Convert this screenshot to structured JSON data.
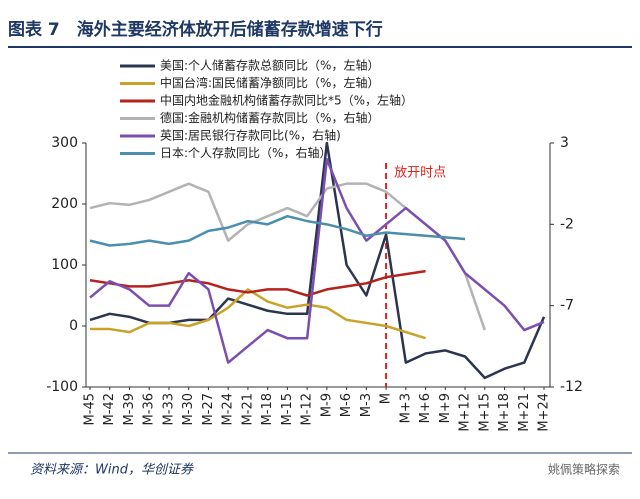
{
  "chart_data": {
    "type": "line",
    "title": "图表 7　海外主要经济体放开后储蓄存款增速下行",
    "source": "资料来源：Wind，华创证券",
    "watermark": "姚佩策略探索",
    "categories": [
      "M-45",
      "M-42",
      "M-39",
      "M-36",
      "M-33",
      "M-30",
      "M-27",
      "M-24",
      "M-21",
      "M-18",
      "M-15",
      "M-12",
      "M-9",
      "M-6",
      "M-3",
      "M",
      "M+3",
      "M+6",
      "M+9",
      "M+12",
      "M+15",
      "M+18",
      "M+21",
      "M+24"
    ],
    "ylim": [
      -100,
      300
    ],
    "yticks": [
      -100,
      0,
      100,
      200,
      300
    ],
    "y2lim": [
      -12,
      3
    ],
    "y2ticks": [
      -12,
      -7,
      -2,
      3
    ],
    "annotations": [
      {
        "text": "放开时点",
        "at": "M",
        "color": "#e0201b"
      }
    ],
    "series": [
      {
        "name": "美国:个人储蓄存款总额同比（%，左轴）",
        "color": "#2b3550",
        "axis": "y",
        "values": [
          10,
          20,
          15,
          5,
          5,
          10,
          10,
          45,
          35,
          25,
          20,
          20,
          300,
          100,
          50,
          150,
          -60,
          -45,
          -40,
          -50,
          -85,
          -70,
          -60,
          15
        ]
      },
      {
        "name": "中国台湾:国民储蓄净额同比（%，左轴）",
        "color": "#c9a227",
        "axis": "y",
        "values": [
          -5,
          -5,
          -10,
          5,
          5,
          0,
          10,
          30,
          60,
          40,
          30,
          35,
          30,
          10,
          5,
          0,
          -10,
          -20,
          null,
          null,
          null,
          null,
          null,
          null
        ]
      },
      {
        "name": "中国内地金融机构储蓄存款同比*5（%，左轴）",
        "color": "#b5221c",
        "axis": "y",
        "values": [
          75,
          70,
          65,
          65,
          70,
          75,
          70,
          60,
          55,
          60,
          60,
          50,
          60,
          65,
          70,
          80,
          85,
          90,
          null,
          null,
          null,
          null,
          null,
          null
        ]
      },
      {
        "name": "德国:金融机构储蓄存款同比（%，右轴）",
        "color": "#b3b3b3",
        "axis": "y2",
        "values": [
          -1,
          -0.7,
          -0.8,
          -0.5,
          0,
          0.5,
          0,
          -3,
          -2,
          -1.5,
          -1,
          -1.5,
          0.2,
          0.5,
          0.5,
          0,
          -1,
          -2,
          -3,
          -5,
          -8.5,
          null,
          null,
          null
        ]
      },
      {
        "name": "英国:居民银行存款同比(%，右轴)",
        "color": "#7b4fb0",
        "axis": "y2",
        "values": [
          -6.5,
          -5.5,
          -6,
          -7,
          -7,
          -5,
          -6,
          -10.5,
          -9.5,
          -8.5,
          -9,
          -9,
          2,
          -1,
          -3,
          -2,
          -1,
          -2,
          -3,
          -5,
          -6,
          -7,
          -8.5,
          -8
        ]
      },
      {
        "name": "日本:个人存款同比（%，右轴）",
        "color": "#4a8fb0",
        "axis": "y2",
        "values": [
          -3,
          -3.3,
          -3.2,
          -3,
          -3.2,
          -3,
          -2.4,
          -2.2,
          -1.8,
          -2,
          -1.5,
          -1.8,
          -2,
          -2.3,
          -2.7,
          -2.5,
          -2.6,
          -2.7,
          -2.8,
          -2.9,
          null,
          null,
          null,
          null
        ]
      }
    ]
  }
}
